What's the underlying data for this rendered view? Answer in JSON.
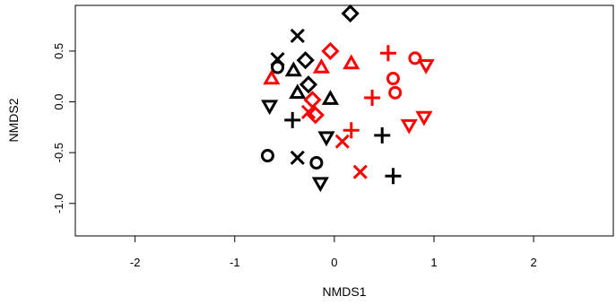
{
  "chart_data": {
    "type": "scatter",
    "title": "",
    "xlabel": "NMDS1",
    "ylabel": "NMDS2",
    "xlim": [
      -2.6,
      2.8
    ],
    "ylim": [
      -1.32,
      0.95
    ],
    "xticks": [
      -2,
      -1,
      0,
      1,
      2
    ],
    "yticks": [
      -1.0,
      -0.5,
      0.0,
      0.5
    ],
    "xtick_labels": [
      "-2",
      "-1",
      "0",
      "1",
      "2"
    ],
    "ytick_labels": [
      "-1.0",
      "-0.5",
      "0.0",
      "0.5"
    ],
    "grid": false,
    "legend": "none",
    "colors": {
      "group1": "#000000",
      "group2": "#ff0000"
    },
    "series": [
      {
        "color": "#000000",
        "points": [
          {
            "x": 0.16,
            "y": 0.87,
            "shape": "diamond"
          },
          {
            "x": -0.37,
            "y": 0.65,
            "shape": "cross"
          },
          {
            "x": -0.57,
            "y": 0.42,
            "shape": "cross"
          },
          {
            "x": -0.57,
            "y": 0.34,
            "shape": "circle"
          },
          {
            "x": -0.29,
            "y": 0.41,
            "shape": "diamond"
          },
          {
            "x": -0.41,
            "y": 0.31,
            "shape": "triangle-up"
          },
          {
            "x": -0.26,
            "y": 0.17,
            "shape": "diamond"
          },
          {
            "x": -0.37,
            "y": 0.09,
            "shape": "triangle-up"
          },
          {
            "x": -0.04,
            "y": 0.03,
            "shape": "triangle-up"
          },
          {
            "x": -0.65,
            "y": -0.04,
            "shape": "triangle-down"
          },
          {
            "x": -0.42,
            "y": -0.18,
            "shape": "plus"
          },
          {
            "x": -0.08,
            "y": -0.35,
            "shape": "triangle-down"
          },
          {
            "x": 0.48,
            "y": -0.33,
            "shape": "plus"
          },
          {
            "x": -0.67,
            "y": -0.53,
            "shape": "circle"
          },
          {
            "x": -0.37,
            "y": -0.55,
            "shape": "cross"
          },
          {
            "x": -0.18,
            "y": -0.6,
            "shape": "circle"
          },
          {
            "x": 0.59,
            "y": -0.73,
            "shape": "plus"
          },
          {
            "x": -0.14,
            "y": -0.8,
            "shape": "triangle-down"
          }
        ]
      },
      {
        "color": "#ff0000",
        "points": [
          {
            "x": -0.04,
            "y": 0.5,
            "shape": "diamond"
          },
          {
            "x": 0.17,
            "y": 0.38,
            "shape": "triangle-up"
          },
          {
            "x": 0.54,
            "y": 0.48,
            "shape": "plus"
          },
          {
            "x": 0.81,
            "y": 0.43,
            "shape": "circle"
          },
          {
            "x": 0.92,
            "y": 0.36,
            "shape": "triangle-down"
          },
          {
            "x": -0.13,
            "y": 0.34,
            "shape": "triangle-up"
          },
          {
            "x": -0.63,
            "y": 0.23,
            "shape": "triangle-up"
          },
          {
            "x": 0.59,
            "y": 0.23,
            "shape": "circle"
          },
          {
            "x": 0.61,
            "y": 0.09,
            "shape": "circle"
          },
          {
            "x": 0.38,
            "y": 0.04,
            "shape": "plus"
          },
          {
            "x": -0.22,
            "y": 0.02,
            "shape": "diamond"
          },
          {
            "x": -0.26,
            "y": -0.1,
            "shape": "cross"
          },
          {
            "x": -0.19,
            "y": -0.13,
            "shape": "diamond"
          },
          {
            "x": 0.9,
            "y": -0.15,
            "shape": "triangle-down"
          },
          {
            "x": 0.75,
            "y": -0.23,
            "shape": "triangle-down"
          },
          {
            "x": 0.17,
            "y": -0.28,
            "shape": "plus"
          },
          {
            "x": 0.08,
            "y": -0.39,
            "shape": "cross"
          },
          {
            "x": 0.26,
            "y": -0.69,
            "shape": "cross"
          }
        ]
      }
    ]
  }
}
